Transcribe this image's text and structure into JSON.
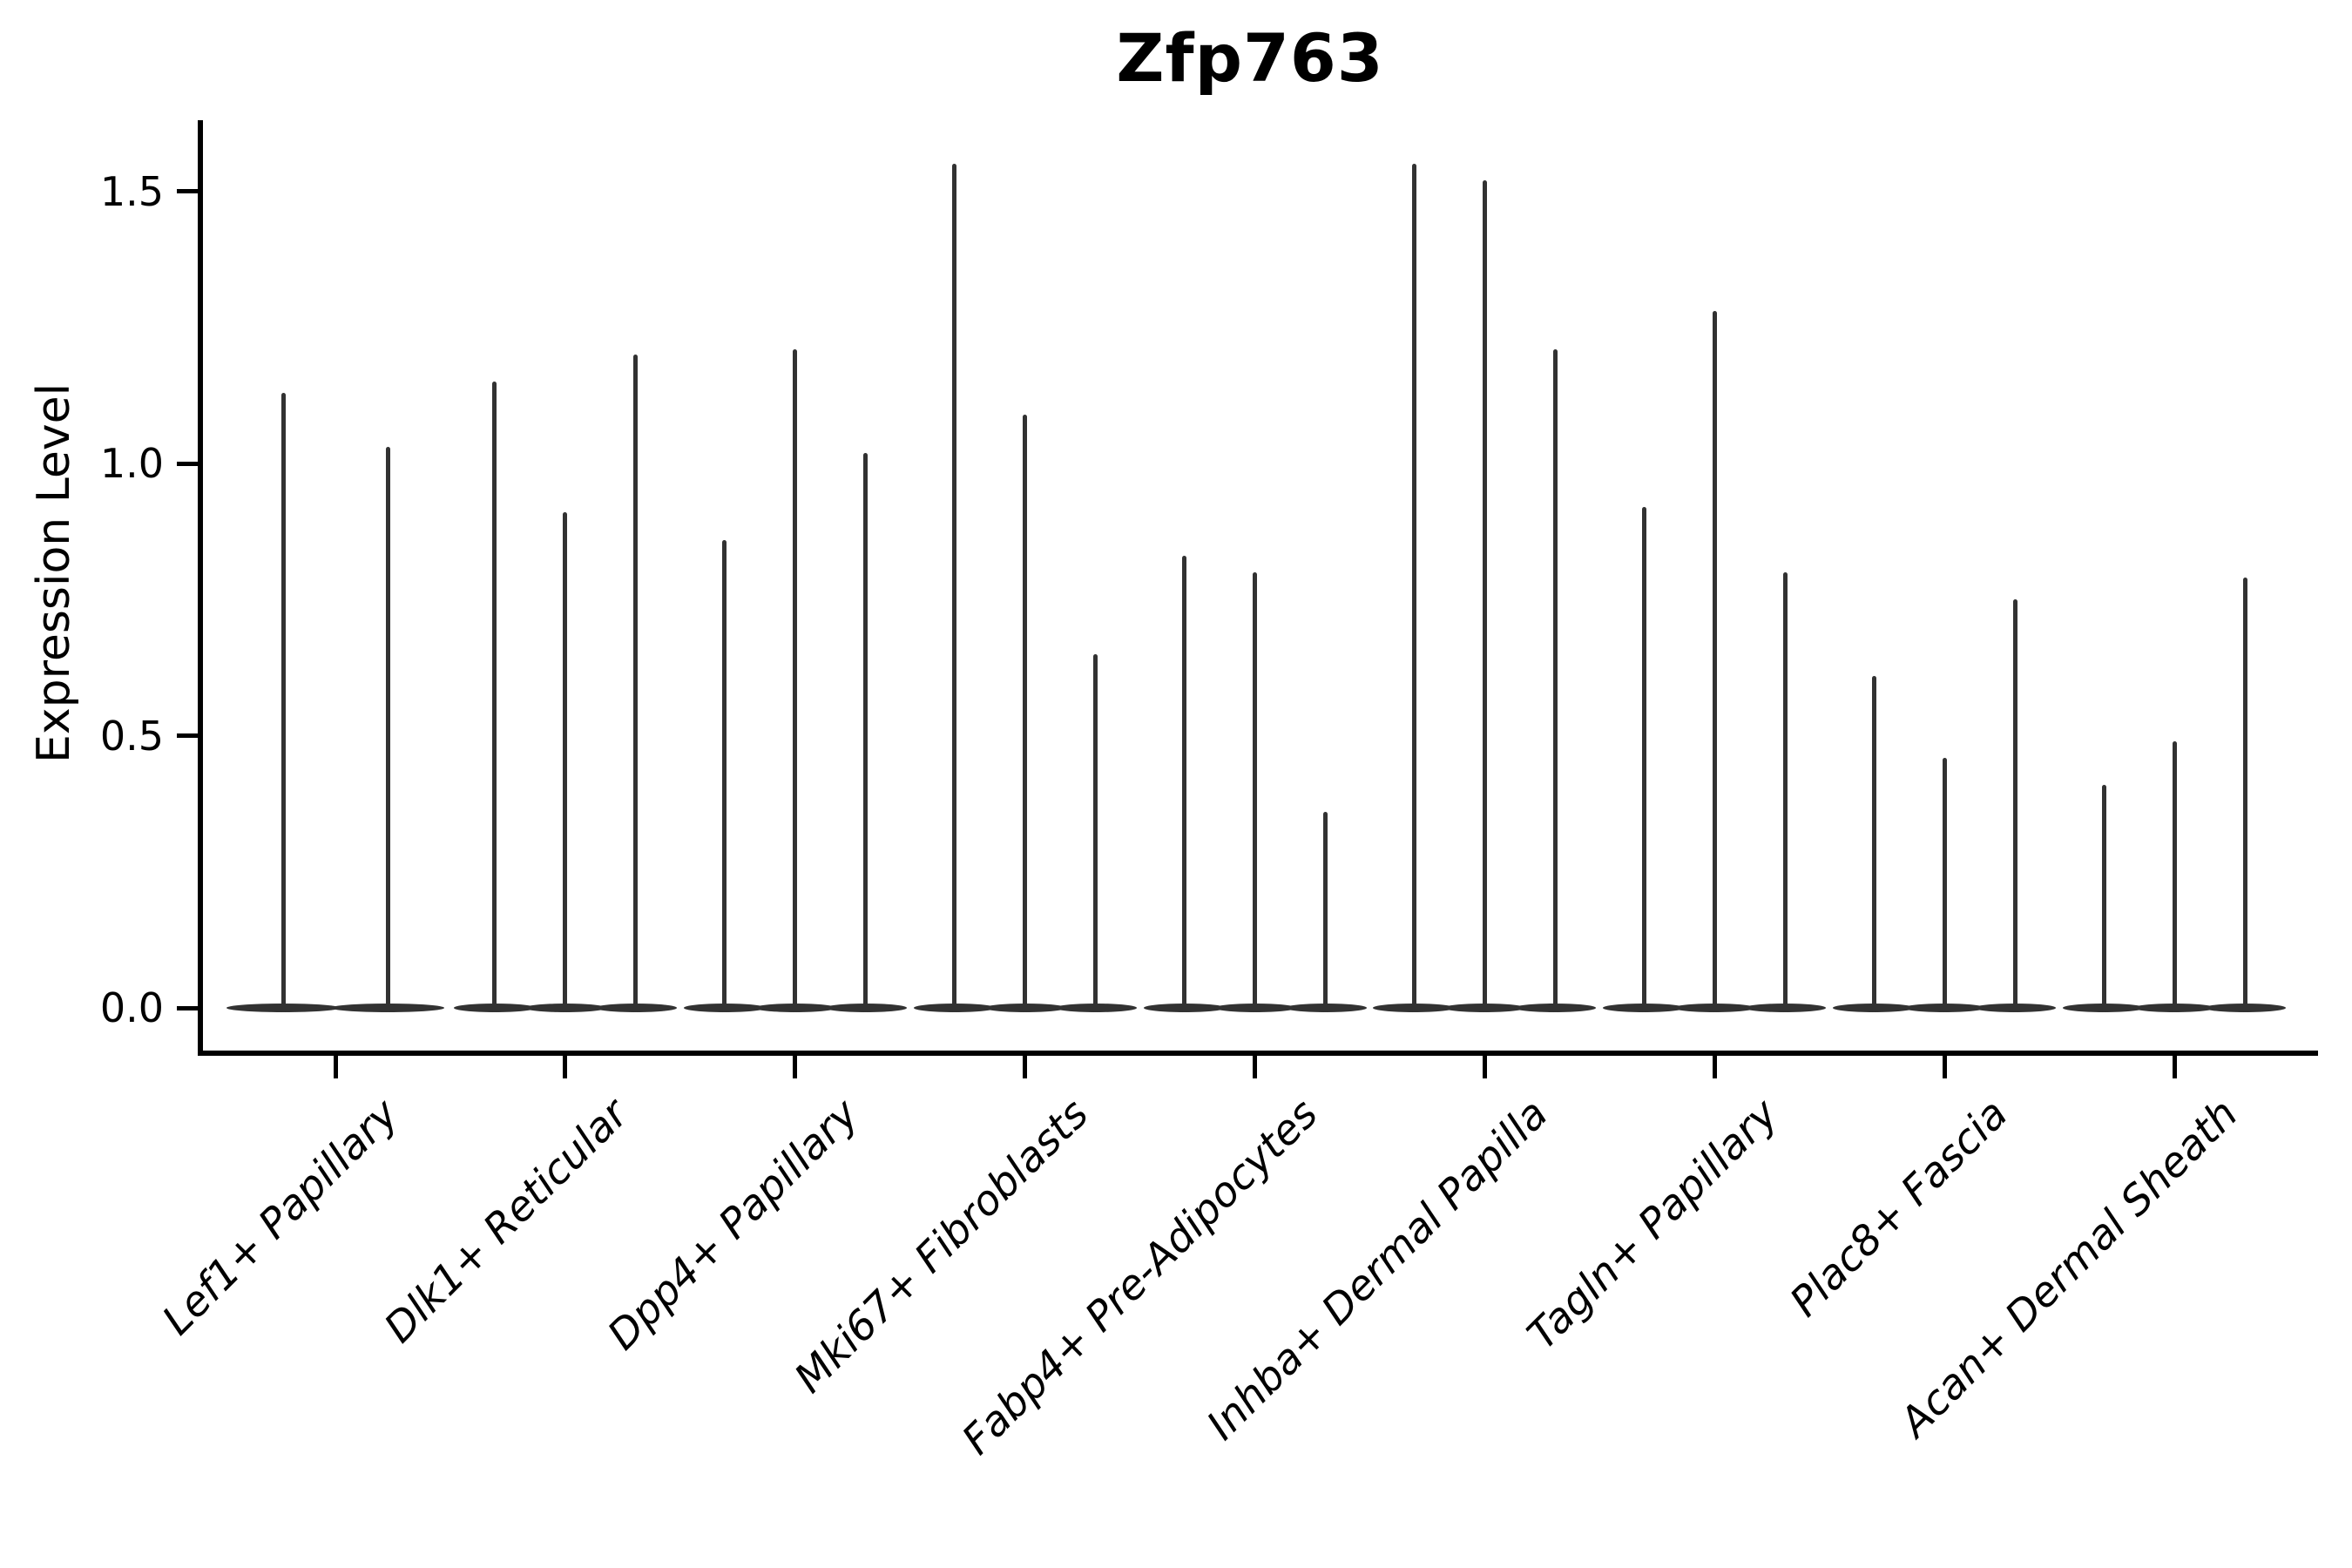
{
  "title": "Zfp763",
  "chart_data": {
    "type": "violin",
    "title": "Zfp763",
    "xlabel": "",
    "ylabel": "Expression Level",
    "ylim": [
      -0.08,
      1.62
    ],
    "yticks": [
      "0.0",
      "0.5",
      "1.0",
      "1.5"
    ],
    "ytick_values": [
      0.0,
      0.5,
      1.0,
      1.5
    ],
    "grid": false,
    "legend": "none",
    "violin_color": "#323232",
    "axis_color": "#000000",
    "description": "Violin plot of Zfp763 expression per fibroblast cluster; each cluster contains 2-3 narrow violins whose mass sits at 0 with a thin tail rising to the maximum expression value.",
    "categories": [
      "Lef1+ Papillary",
      "Dlk1+ Reticular",
      "Dpp4+ Papillary",
      "Mki67+ Fibroblasts",
      "Fabp4+ Pre-Adipocytes",
      "Inhba+ Dermal Papilla",
      "Tagln+ Papillary",
      "Plac8+ Fascia",
      "Acan+ Dermal Sheath"
    ],
    "series": [
      {
        "category": "Lef1+ Papillary",
        "violin_max_values": [
          1.13,
          1.03
        ]
      },
      {
        "category": "Dlk1+ Reticular",
        "violin_max_values": [
          1.15,
          0.91,
          1.2
        ]
      },
      {
        "category": "Dpp4+ Papillary",
        "violin_max_values": [
          0.86,
          1.21,
          1.02
        ]
      },
      {
        "category": "Mki67+ Fibroblasts",
        "violin_max_values": [
          1.55,
          1.09,
          0.65
        ]
      },
      {
        "category": "Fabp4+ Pre-Adipocytes",
        "violin_max_values": [
          0.83,
          0.8,
          0.36
        ]
      },
      {
        "category": "Inhba+ Dermal Papilla",
        "violin_max_values": [
          1.55,
          1.52,
          1.21
        ]
      },
      {
        "category": "Tagln+ Papillary",
        "violin_max_values": [
          0.92,
          1.28,
          0.8
        ]
      },
      {
        "category": "Plac8+ Fascia",
        "violin_max_values": [
          0.61,
          0.46,
          0.75
        ]
      },
      {
        "category": "Acan+ Dermal Sheath",
        "violin_max_values": [
          0.41,
          0.49,
          0.79
        ]
      }
    ]
  }
}
